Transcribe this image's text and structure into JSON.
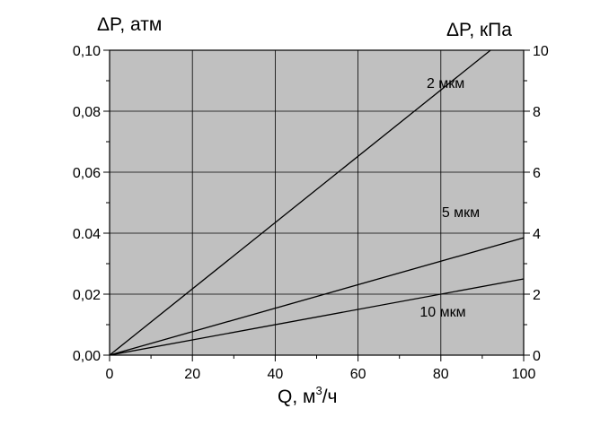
{
  "chart_data": {
    "type": "line",
    "title": "",
    "xlabel_main": "Q, м",
    "xlabel_sup": "3",
    "xlabel_tail": "/ч",
    "ylabel_left": "ΔP, атм",
    "ylabel_right": "ΔP, кПа",
    "xlim": [
      0,
      100
    ],
    "ylim_left": [
      0,
      0.1
    ],
    "ylim_right": [
      0,
      10
    ],
    "grid": true,
    "plot_background": "#c0c0c0",
    "line_color": "#000000",
    "x_ticks": [
      0,
      20,
      40,
      60,
      80,
      100
    ],
    "x_tick_labels": [
      "0",
      "20",
      "40",
      "60",
      "80",
      "100"
    ],
    "y_left_ticks": [
      0,
      0.02,
      0.04,
      0.06,
      0.08,
      0.1
    ],
    "y_left_tick_labels": [
      "0,00",
      "0,02",
      "0.04",
      "0,06",
      "0,08",
      "0,10"
    ],
    "y_right_ticks": [
      0,
      2,
      4,
      6,
      8,
      10
    ],
    "y_right_tick_labels": [
      "0",
      "2",
      "4",
      "6",
      "8",
      "10"
    ],
    "series": [
      {
        "name": "2 мкм",
        "x": [
          0,
          92
        ],
        "y": [
          0,
          0.1
        ]
      },
      {
        "name": "5 мкм",
        "x": [
          0,
          100
        ],
        "y": [
          0,
          0.0385
        ]
      },
      {
        "name": "10 мкм",
        "x": [
          0,
          100
        ],
        "y": [
          0,
          0.025
        ]
      }
    ]
  }
}
